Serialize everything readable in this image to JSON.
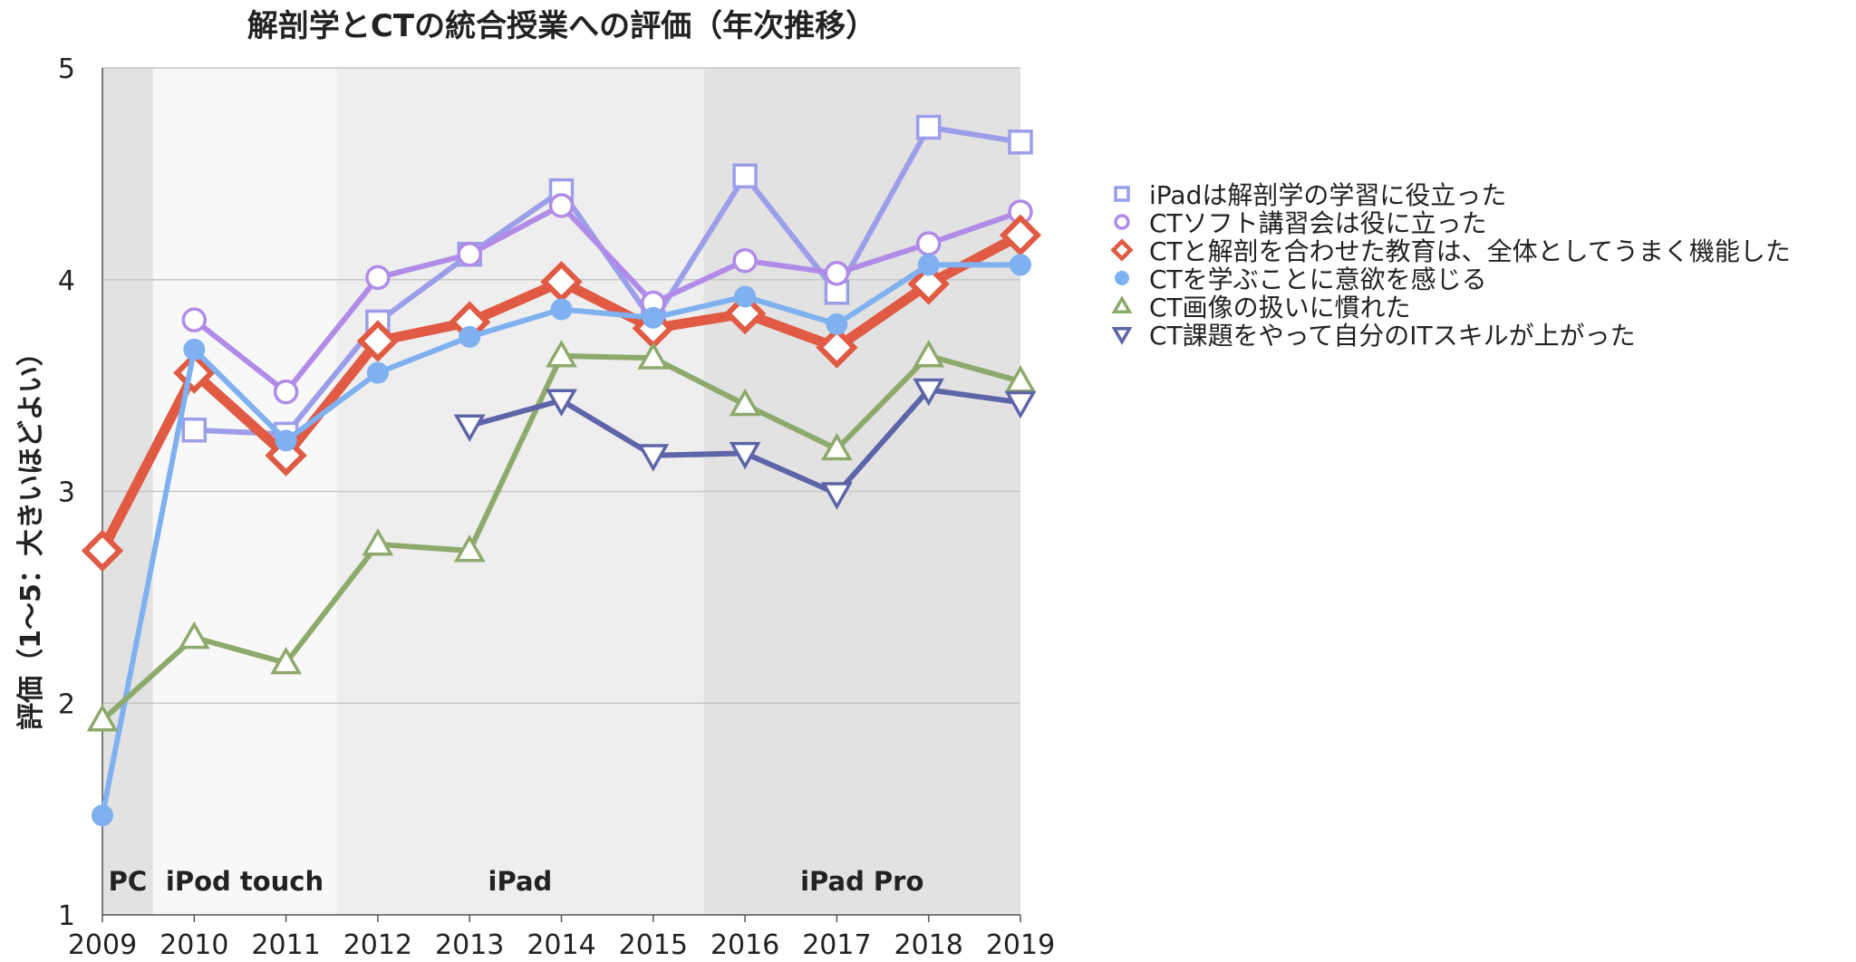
{
  "chart_data": {
    "type": "line",
    "title": "解剖学とCTの統合授業への評価（年次推移）",
    "ylabel": "評価（1〜5：大きいほどよい）",
    "xlabel": "",
    "x": [
      "2009",
      "2010",
      "2011",
      "2012",
      "2013",
      "2014",
      "2015",
      "2016",
      "2017",
      "2018",
      "2019"
    ],
    "ylim": [
      1,
      5
    ],
    "yticks": [
      "1",
      "2",
      "3",
      "4",
      "5"
    ],
    "grid": true,
    "legend_position": "right",
    "eras": [
      {
        "label": "PC",
        "start": 2009,
        "end": 2009.55,
        "color": "#e2e2e2"
      },
      {
        "label": "iPod touch",
        "start": 2009.55,
        "end": 2011.55,
        "color": "#f8f8f8"
      },
      {
        "label": "iPad",
        "start": 2011.55,
        "end": 2015.55,
        "color": "#eeeeee"
      },
      {
        "label": "iPad Pro",
        "start": 2015.55,
        "end": 2019,
        "color": "#e2e2e2"
      }
    ],
    "series": [
      {
        "name": "iPadは解剖学の学習に役立った",
        "marker": "square",
        "color": "#9b9ee8",
        "values": [
          null,
          3.29,
          3.27,
          3.8,
          4.12,
          4.42,
          3.8,
          4.49,
          3.94,
          4.72,
          4.65
        ]
      },
      {
        "name": "CTソフト講習会は役に立った",
        "marker": "circle",
        "color": "#b18be8",
        "values": [
          null,
          3.81,
          3.47,
          4.01,
          4.12,
          4.35,
          3.89,
          4.09,
          4.03,
          4.17,
          4.32
        ]
      },
      {
        "name": "CTと解剖を合わせた教育は、全体としてうまく機能した",
        "marker": "diamond",
        "color": "#e05a44",
        "values": [
          2.72,
          3.56,
          3.17,
          3.71,
          3.8,
          3.99,
          3.77,
          3.84,
          3.68,
          3.98,
          4.21
        ]
      },
      {
        "name": "CTを学ぶことに意欲を感じる",
        "marker": "dot",
        "color": "#7fb0f0",
        "values": [
          1.47,
          3.67,
          3.24,
          3.56,
          3.73,
          3.86,
          3.82,
          3.92,
          3.79,
          4.07,
          4.07
        ]
      },
      {
        "name": "CT画像の扱いに慣れた",
        "marker": "triangle-up",
        "color": "#8daa6c",
        "values": [
          1.92,
          2.31,
          2.19,
          2.75,
          2.72,
          3.64,
          3.63,
          3.41,
          3.2,
          3.64,
          3.52
        ]
      },
      {
        "name": "CT課題をやって自分のITスキルが上がった",
        "marker": "triangle-down",
        "color": "#5d65a8",
        "values": [
          null,
          null,
          null,
          null,
          3.31,
          3.43,
          3.17,
          3.18,
          2.99,
          3.48,
          3.42
        ]
      }
    ]
  }
}
